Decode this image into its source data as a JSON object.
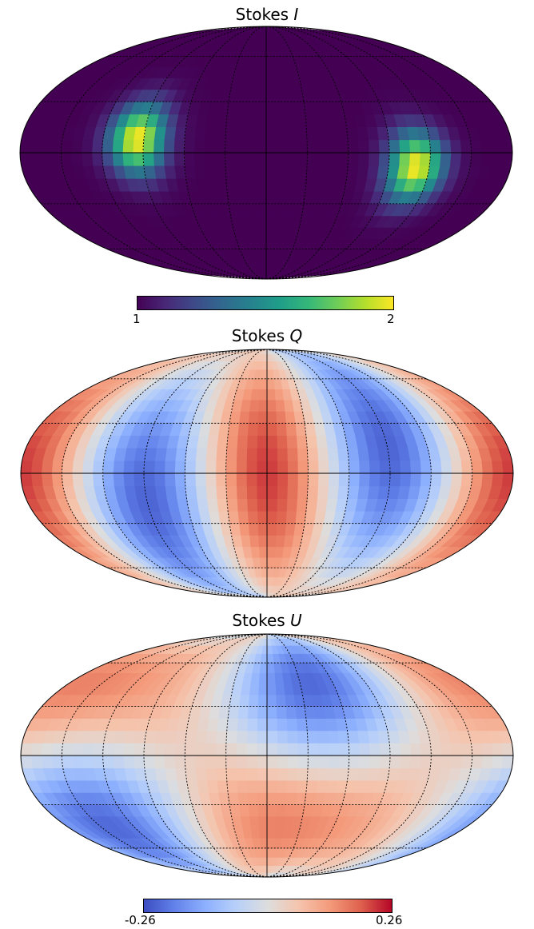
{
  "chart_data": [
    {
      "type": "heatmap",
      "projection": "mollweide",
      "title_text": "Stokes ",
      "title_var": "I",
      "colormap": "viridis",
      "colorbar": {
        "min": 1,
        "max": 2,
        "tick_labels": [
          "1",
          "2"
        ]
      },
      "hotspots": [
        {
          "longitude_deg": 95,
          "latitude_deg": 8,
          "peak": 2
        },
        {
          "longitude_deg": -110,
          "latitude_deg": -8,
          "peak": 2
        }
      ],
      "background_value": 1,
      "graticule": {
        "meridian_step_deg": 30,
        "parallel_step_deg": 30
      }
    },
    {
      "type": "heatmap",
      "projection": "mollweide",
      "title_text": "Stokes ",
      "title_var": "Q",
      "colormap": "coolwarm",
      "colorbar": {
        "min": -0.26,
        "max": 0.26,
        "shared_with": "Stokes U"
      },
      "graticule": {
        "meridian_step_deg": 30,
        "parallel_step_deg": 30
      }
    },
    {
      "type": "heatmap",
      "projection": "mollweide",
      "title_text": "Stokes ",
      "title_var": "U",
      "colormap": "coolwarm",
      "colorbar": {
        "min": -0.26,
        "max": 0.26,
        "tick_labels": [
          "-0.26",
          "0.26"
        ]
      },
      "graticule": {
        "meridian_step_deg": 30,
        "parallel_step_deg": 30
      }
    }
  ]
}
